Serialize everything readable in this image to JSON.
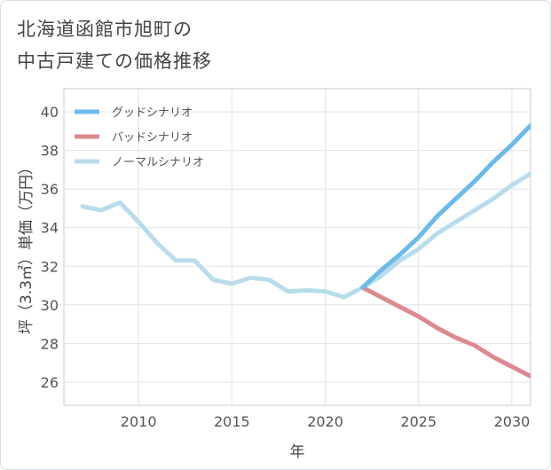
{
  "title_line1": "北海道函館市旭町の",
  "title_line2": "中古戸建ての価格推移",
  "chart_data": {
    "type": "line",
    "xlabel": "年",
    "ylabel": "坪（3.3㎡）単価（万円）",
    "xlim": [
      2006,
      2031
    ],
    "ylim": [
      24.8,
      41.2
    ],
    "x_ticks": [
      2010,
      2015,
      2020,
      2025,
      2030
    ],
    "y_ticks": [
      26,
      28,
      30,
      32,
      34,
      36,
      38,
      40
    ],
    "grid": true,
    "legend_position": "top-left",
    "series": [
      {
        "name": "グッドシナリオ",
        "color": "#6cb9ec",
        "x": [
          2022,
          2023,
          2024,
          2025,
          2026,
          2027,
          2028,
          2029,
          2030,
          2031
        ],
        "y": [
          30.9,
          31.8,
          32.6,
          33.5,
          34.6,
          35.5,
          36.4,
          37.4,
          38.3,
          39.3
        ]
      },
      {
        "name": "バッドシナリオ",
        "color": "#dc8991",
        "x": [
          2022,
          2023,
          2024,
          2025,
          2026,
          2027,
          2028,
          2029,
          2030,
          2031
        ],
        "y": [
          30.9,
          30.4,
          29.9,
          29.4,
          28.8,
          28.3,
          27.9,
          27.3,
          26.8,
          26.3
        ]
      },
      {
        "name": "ノーマルシナリオ",
        "color": "#b9dcec",
        "x": [
          2007,
          2008,
          2009,
          2010,
          2011,
          2012,
          2013,
          2014,
          2015,
          2016,
          2017,
          2018,
          2019,
          2020,
          2021,
          2022,
          2023,
          2024,
          2025,
          2026,
          2027,
          2028,
          2029,
          2030,
          2031
        ],
        "y": [
          35.1,
          34.9,
          35.3,
          34.3,
          33.2,
          32.3,
          32.3,
          31.3,
          31.1,
          31.4,
          31.3,
          30.7,
          30.75,
          30.7,
          30.4,
          30.9,
          31.5,
          32.3,
          32.9,
          33.7,
          34.3,
          34.9,
          35.5,
          36.2,
          36.8
        ]
      }
    ]
  }
}
